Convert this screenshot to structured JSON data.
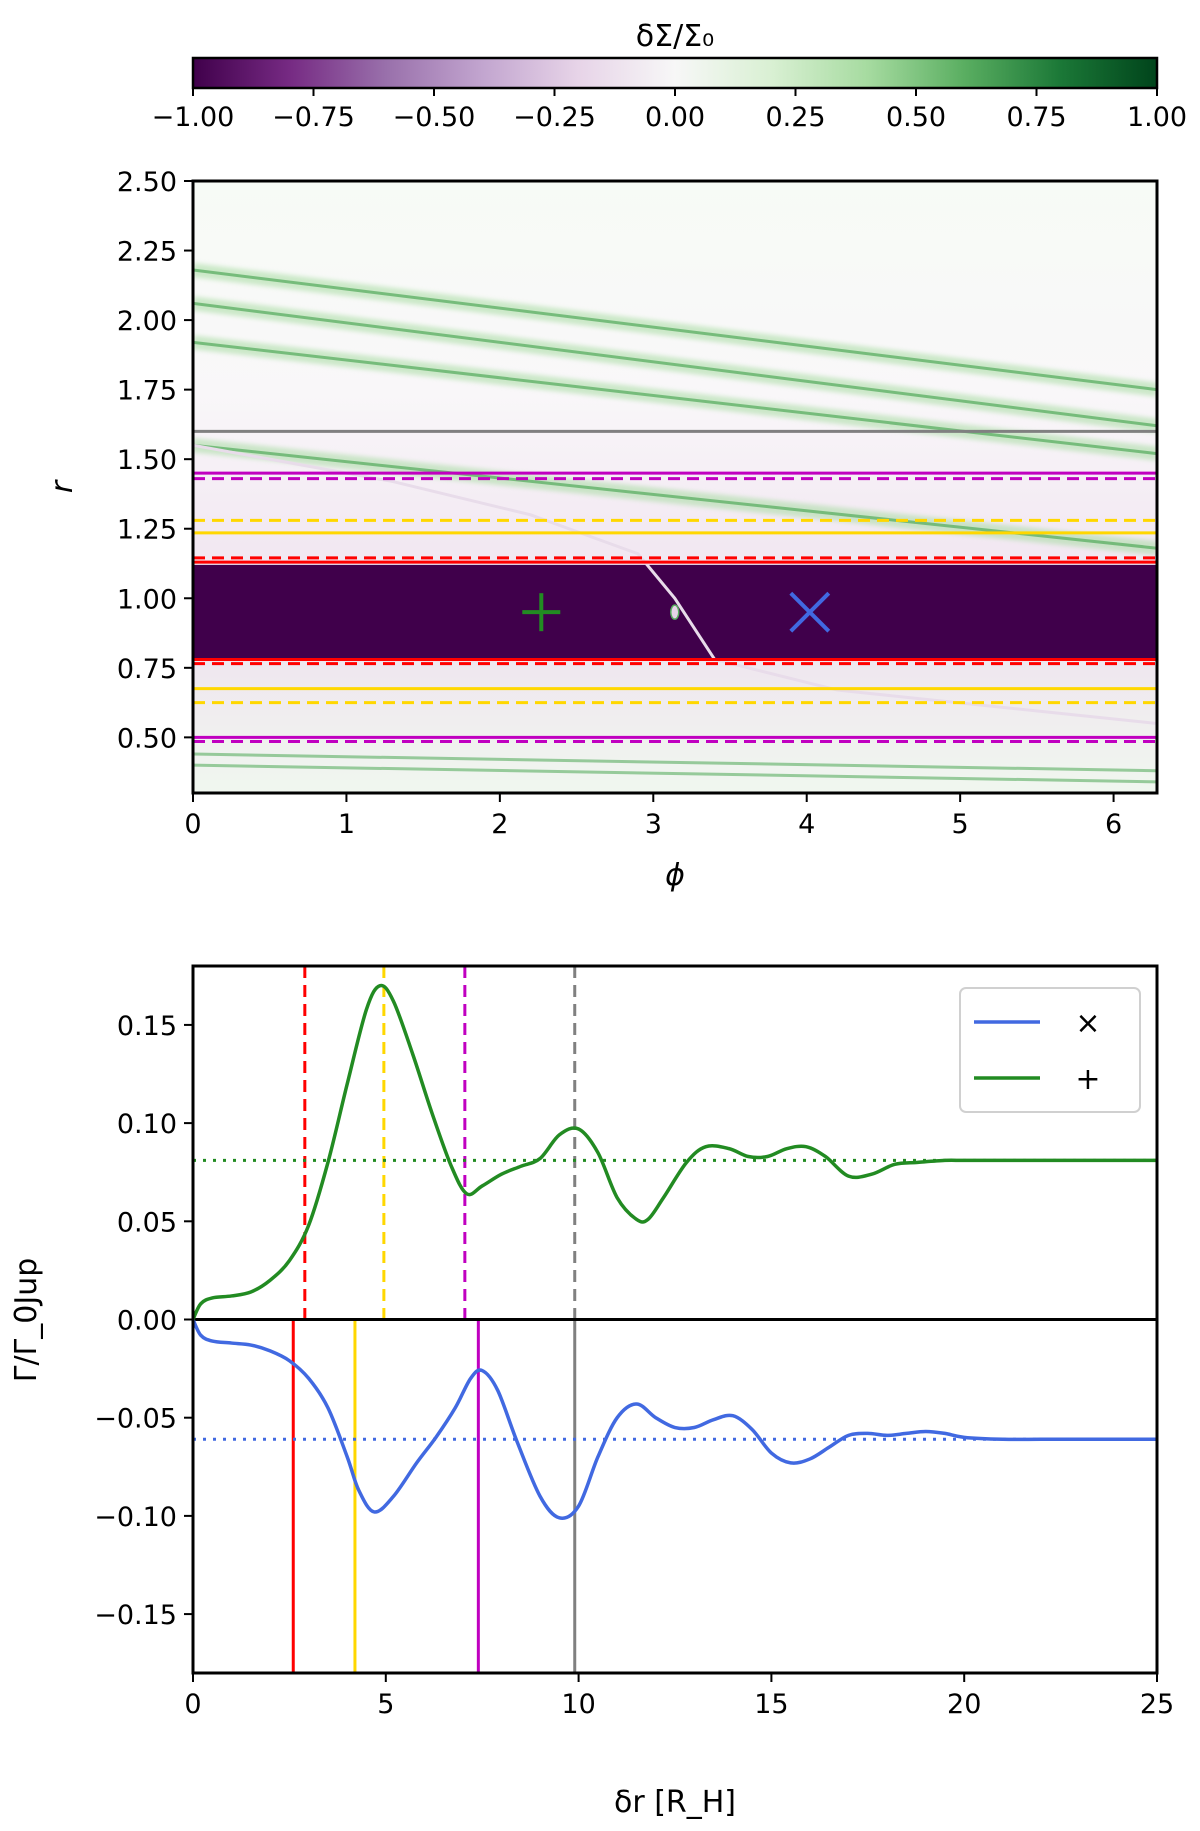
{
  "colorbar": {
    "label": "δΣ/Σ₀",
    "min": -1.0,
    "max": 1.0,
    "ticks": [
      "−1.00",
      "−0.75",
      "−0.50",
      "−0.25",
      "0.00",
      "0.25",
      "0.50",
      "0.75",
      "1.00"
    ],
    "colormap": "PRGn",
    "colors": [
      "#40004b",
      "#762a83",
      "#9970ab",
      "#c2a5cf",
      "#e7d4e8",
      "#f7f7f7",
      "#d9f0d3",
      "#a6dba0",
      "#5aae61",
      "#1b7837",
      "#00441b"
    ]
  },
  "chart_data": [
    {
      "type": "heatmap",
      "xlabel": "ϕ",
      "ylabel": "r",
      "xlim": [
        0,
        6.283
      ],
      "ylim": [
        0.3,
        2.5
      ],
      "xticks": [
        {
          "v": 0,
          "t": "0"
        },
        {
          "v": 1,
          "t": "1"
        },
        {
          "v": 2,
          "t": "2"
        },
        {
          "v": 3,
          "t": "3"
        },
        {
          "v": 4,
          "t": "4"
        },
        {
          "v": 5,
          "t": "5"
        },
        {
          "v": 6,
          "t": "6"
        }
      ],
      "yticks": [
        {
          "v": 0.5,
          "t": "0.50"
        },
        {
          "v": 0.75,
          "t": "0.75"
        },
        {
          "v": 1.0,
          "t": "1.00"
        },
        {
          "v": 1.25,
          "t": "1.25"
        },
        {
          "v": 1.5,
          "t": "1.50"
        },
        {
          "v": 1.75,
          "t": "1.75"
        },
        {
          "v": 2.0,
          "t": "2.00"
        },
        {
          "v": 2.25,
          "t": "2.25"
        },
        {
          "v": 2.5,
          "t": "2.50"
        }
      ],
      "depleted_band": [
        0.78,
        1.12
      ],
      "planet": {
        "phi": 3.14,
        "r": 0.95
      },
      "markers": [
        {
          "symbol": "+",
          "phi": 2.27,
          "r": 0.95,
          "color": "#228b22"
        },
        {
          "symbol": "×",
          "phi": 4.02,
          "r": 0.95,
          "color": "#4169e1"
        }
      ],
      "hlines": [
        {
          "r": 1.6,
          "color": "#808080",
          "style": "solid"
        },
        {
          "r": 1.45,
          "color": "#c000c0",
          "style": "solid"
        },
        {
          "r": 1.43,
          "color": "#c000c0",
          "style": "dashed"
        },
        {
          "r": 1.28,
          "color": "#ffd700",
          "style": "dashed"
        },
        {
          "r": 1.235,
          "color": "#ffd700",
          "style": "solid"
        },
        {
          "r": 1.145,
          "color": "#ff0000",
          "style": "dashed"
        },
        {
          "r": 1.13,
          "color": "#ff0000",
          "style": "solid"
        },
        {
          "r": 0.78,
          "color": "#ff0000",
          "style": "solid"
        },
        {
          "r": 0.765,
          "color": "#ff0000",
          "style": "dashed"
        },
        {
          "r": 0.675,
          "color": "#ffd700",
          "style": "solid"
        },
        {
          "r": 0.625,
          "color": "#ffd700",
          "style": "dashed"
        },
        {
          "r": 0.5,
          "color": "#c000c0",
          "style": "solid"
        },
        {
          "r": 0.485,
          "color": "#c000c0",
          "style": "dashed"
        }
      ],
      "spiral_arms": {
        "outer": [
          {
            "phi": [
              0,
              6.283
            ],
            "r": [
              2.18,
              1.75
            ]
          },
          {
            "phi": [
              0,
              6.283
            ],
            "r": [
              2.06,
              1.62
            ]
          },
          {
            "phi": [
              0,
              6.283
            ],
            "r": [
              1.92,
              1.52
            ]
          },
          {
            "phi": [
              0,
              6.283
            ],
            "r": [
              1.55,
              1.18
            ]
          }
        ],
        "wake": [
          [
            0.0,
            1.55
          ],
          [
            1.3,
            1.42
          ],
          [
            2.2,
            1.3
          ],
          [
            2.9,
            1.16
          ],
          [
            3.14,
            1.0
          ],
          [
            3.4,
            0.78
          ],
          [
            4.2,
            0.67
          ],
          [
            6.283,
            0.55
          ]
        ]
      }
    },
    {
      "type": "line",
      "xlabel": "δr [R_H]",
      "ylabel": "Γ/Γ_0Jup",
      "xlim": [
        0,
        25
      ],
      "ylim": [
        -0.18,
        0.18
      ],
      "xticks": [
        {
          "v": 0,
          "t": "0"
        },
        {
          "v": 5,
          "t": "5"
        },
        {
          "v": 10,
          "t": "10"
        },
        {
          "v": 15,
          "t": "15"
        },
        {
          "v": 20,
          "t": "20"
        },
        {
          "v": 25,
          "t": "25"
        }
      ],
      "yticks": [
        {
          "v": 0.15,
          "t": "0.15"
        },
        {
          "v": 0.1,
          "t": "0.10"
        },
        {
          "v": 0.05,
          "t": "0.05"
        },
        {
          "v": 0.0,
          "t": "0.00"
        },
        {
          "v": -0.05,
          "t": "−0.05"
        },
        {
          "v": -0.1,
          "t": "−0.10"
        },
        {
          "v": -0.15,
          "t": "−0.15"
        }
      ],
      "legend": {
        "location": "top-right",
        "entries": [
          {
            "label": "×",
            "color": "#4169e1"
          },
          {
            "label": "+",
            "color": "#228b22"
          }
        ]
      },
      "series": [
        {
          "label": "×",
          "color": "#4169e1",
          "x": [
            0,
            0.2,
            0.5,
            1,
            1.5,
            2,
            2.5,
            3,
            3.5,
            4,
            4.3,
            4.7,
            5.2,
            5.8,
            6.3,
            6.8,
            7.2,
            7.5,
            7.9,
            8.4,
            9,
            9.5,
            10,
            10.5,
            11,
            11.5,
            12,
            12.5,
            13,
            13.5,
            14,
            14.5,
            15,
            15.5,
            16,
            16.5,
            17,
            17.5,
            18,
            18.5,
            19,
            19.5,
            20,
            21,
            22,
            23,
            24,
            25
          ],
          "y": [
            0,
            -0.008,
            -0.011,
            -0.012,
            -0.013,
            -0.016,
            -0.021,
            -0.03,
            -0.045,
            -0.07,
            -0.087,
            -0.098,
            -0.09,
            -0.073,
            -0.06,
            -0.045,
            -0.03,
            -0.026,
            -0.036,
            -0.062,
            -0.09,
            -0.101,
            -0.095,
            -0.07,
            -0.05,
            -0.043,
            -0.05,
            -0.055,
            -0.055,
            -0.051,
            -0.049,
            -0.056,
            -0.068,
            -0.073,
            -0.071,
            -0.065,
            -0.059,
            -0.058,
            -0.059,
            -0.058,
            -0.057,
            -0.058,
            -0.06,
            -0.061,
            -0.061,
            -0.061,
            -0.061,
            -0.061
          ]
        },
        {
          "label": "+",
          "color": "#228b22",
          "x": [
            0,
            0.2,
            0.5,
            1,
            1.5,
            2,
            2.5,
            3,
            3.5,
            4,
            4.5,
            4.85,
            5.2,
            5.7,
            6.2,
            6.7,
            7.1,
            7.5,
            8,
            8.5,
            9,
            9.5,
            10,
            10.5,
            11,
            11.5,
            11.8,
            12.2,
            12.8,
            13.3,
            13.9,
            14.4,
            14.9,
            15.4,
            15.9,
            16.4,
            17,
            17.6,
            18.2,
            18.8,
            19.5,
            20,
            21,
            22,
            23,
            24,
            25
          ],
          "y": [
            0,
            0.008,
            0.011,
            0.012,
            0.014,
            0.02,
            0.03,
            0.048,
            0.08,
            0.12,
            0.158,
            0.17,
            0.162,
            0.135,
            0.105,
            0.078,
            0.064,
            0.068,
            0.074,
            0.078,
            0.082,
            0.094,
            0.097,
            0.085,
            0.062,
            0.051,
            0.051,
            0.062,
            0.08,
            0.088,
            0.087,
            0.083,
            0.083,
            0.087,
            0.088,
            0.083,
            0.073,
            0.074,
            0.079,
            0.08,
            0.081,
            0.081,
            0.081,
            0.081,
            0.081,
            0.081,
            0.081
          ]
        }
      ],
      "hlines": [
        {
          "y": 0.0,
          "color": "#000000",
          "style": "solid"
        },
        {
          "y": 0.081,
          "color": "#228b22",
          "style": "dotted"
        },
        {
          "y": -0.061,
          "color": "#4169e1",
          "style": "dotted"
        }
      ],
      "vlines": [
        {
          "x": 2.9,
          "color": "#ff0000",
          "style": "dashed",
          "range": "upper"
        },
        {
          "x": 4.95,
          "color": "#ffd700",
          "style": "dashed",
          "range": "upper"
        },
        {
          "x": 7.05,
          "color": "#c000c0",
          "style": "dashed",
          "range": "upper"
        },
        {
          "x": 9.9,
          "color": "#808080",
          "style": "dashed",
          "range": "upper"
        },
        {
          "x": 2.6,
          "color": "#ff0000",
          "style": "solid",
          "range": "lower"
        },
        {
          "x": 4.2,
          "color": "#ffd700",
          "style": "solid",
          "range": "lower"
        },
        {
          "x": 7.4,
          "color": "#c000c0",
          "style": "solid",
          "range": "lower"
        },
        {
          "x": 9.9,
          "color": "#808080",
          "style": "solid",
          "range": "lower"
        }
      ]
    }
  ]
}
